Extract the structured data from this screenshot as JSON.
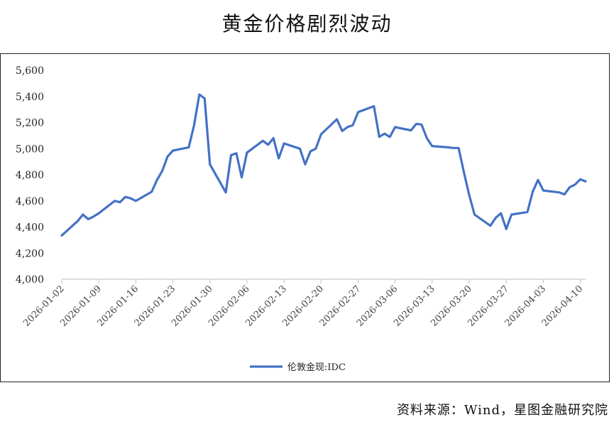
{
  "title": "黄金价格剧烈波动",
  "source": "资料来源：Wind，星图金融研究院",
  "chart_data": {
    "type": "line",
    "ylim": [
      4000,
      5600
    ],
    "yticks": [
      "4,000",
      "4,200",
      "4,400",
      "4,600",
      "4,800",
      "5,000",
      "5,200",
      "5,400",
      "5,600"
    ],
    "xlim": [
      "2026-01-02",
      "2026-04-11"
    ],
    "xticks": [
      "2026-01-02",
      "2026-01-09",
      "2026-01-16",
      "2026-01-23",
      "2026-01-30",
      "2026-02-06",
      "2026-02-13",
      "2026-02-20",
      "2026-02-27",
      "2026-03-06",
      "2026-03-13",
      "2026-03-20",
      "2026-03-27",
      "2026-04-03",
      "2026-04-10"
    ],
    "grid": false,
    "legend_position": "bottom",
    "series": [
      {
        "name": "伦敦金现:IDC",
        "color": "#4472C4",
        "points": [
          [
            "2026-01-02",
            4335
          ],
          [
            "2026-01-05",
            4445
          ],
          [
            "2026-01-06",
            4495
          ],
          [
            "2026-01-07",
            4460
          ],
          [
            "2026-01-08",
            4480
          ],
          [
            "2026-01-09",
            4505
          ],
          [
            "2026-01-12",
            4600
          ],
          [
            "2026-01-13",
            4590
          ],
          [
            "2026-01-14",
            4630
          ],
          [
            "2026-01-15",
            4620
          ],
          [
            "2026-01-16",
            4600
          ],
          [
            "2026-01-19",
            4670
          ],
          [
            "2026-01-20",
            4760
          ],
          [
            "2026-01-21",
            4830
          ],
          [
            "2026-01-22",
            4940
          ],
          [
            "2026-01-23",
            4985
          ],
          [
            "2026-01-26",
            5010
          ],
          [
            "2026-01-27",
            5180
          ],
          [
            "2026-01-28",
            5415
          ],
          [
            "2026-01-29",
            5385
          ],
          [
            "2026-01-30",
            4880
          ],
          [
            "2026-02-02",
            4665
          ],
          [
            "2026-02-03",
            4950
          ],
          [
            "2026-02-04",
            4965
          ],
          [
            "2026-02-05",
            4780
          ],
          [
            "2026-02-06",
            4970
          ],
          [
            "2026-02-09",
            5060
          ],
          [
            "2026-02-10",
            5030
          ],
          [
            "2026-02-11",
            5080
          ],
          [
            "2026-02-12",
            4925
          ],
          [
            "2026-02-13",
            5040
          ],
          [
            "2026-02-16",
            5000
          ],
          [
            "2026-02-17",
            4880
          ],
          [
            "2026-02-18",
            4980
          ],
          [
            "2026-02-19",
            5000
          ],
          [
            "2026-02-20",
            5110
          ],
          [
            "2026-02-23",
            5225
          ],
          [
            "2026-02-24",
            5135
          ],
          [
            "2026-02-25",
            5165
          ],
          [
            "2026-02-26",
            5180
          ],
          [
            "2026-02-27",
            5280
          ],
          [
            "2026-03-02",
            5325
          ],
          [
            "2026-03-03",
            5090
          ],
          [
            "2026-03-04",
            5115
          ],
          [
            "2026-03-05",
            5090
          ],
          [
            "2026-03-06",
            5165
          ],
          [
            "2026-03-09",
            5140
          ],
          [
            "2026-03-10",
            5190
          ],
          [
            "2026-03-11",
            5185
          ],
          [
            "2026-03-12",
            5080
          ],
          [
            "2026-03-13",
            5020
          ],
          [
            "2026-03-16",
            5010
          ],
          [
            "2026-03-17",
            5005
          ],
          [
            "2026-03-18",
            5005
          ],
          [
            "2026-03-19",
            4820
          ],
          [
            "2026-03-20",
            4645
          ],
          [
            "2026-03-21",
            4495
          ],
          [
            "2026-03-24",
            4410
          ],
          [
            "2026-03-25",
            4470
          ],
          [
            "2026-03-26",
            4505
          ],
          [
            "2026-03-27",
            4385
          ],
          [
            "2026-03-28",
            4495
          ],
          [
            "2026-03-31",
            4515
          ],
          [
            "2026-04-01",
            4670
          ],
          [
            "2026-04-02",
            4760
          ],
          [
            "2026-04-03",
            4680
          ],
          [
            "2026-04-06",
            4665
          ],
          [
            "2026-04-07",
            4650
          ],
          [
            "2026-04-08",
            4705
          ],
          [
            "2026-04-09",
            4725
          ],
          [
            "2026-04-10",
            4765
          ],
          [
            "2026-04-11",
            4750
          ]
        ]
      }
    ]
  }
}
